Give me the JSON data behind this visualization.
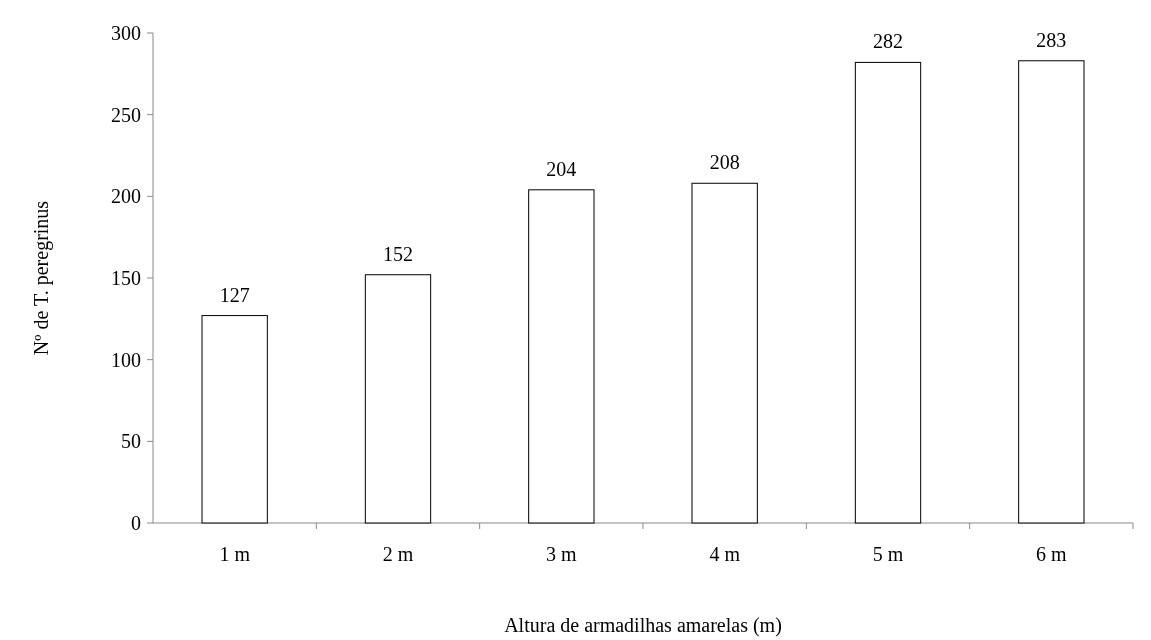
{
  "chart_data": {
    "type": "bar",
    "xlabel": "Altura de armadilhas amarelas (m)",
    "ylabel": "Nº de T. peregrinus",
    "categories": [
      "1 m",
      "2 m",
      "3 m",
      "4 m",
      "5 m",
      "6 m"
    ],
    "values": [
      127,
      152,
      204,
      208,
      282,
      283
    ],
    "color": "#ffffff",
    "ylim": [
      0,
      300
    ],
    "yticks": [
      0,
      50,
      100,
      150,
      200,
      250,
      300
    ],
    "grid": false,
    "data_labels": true
  }
}
